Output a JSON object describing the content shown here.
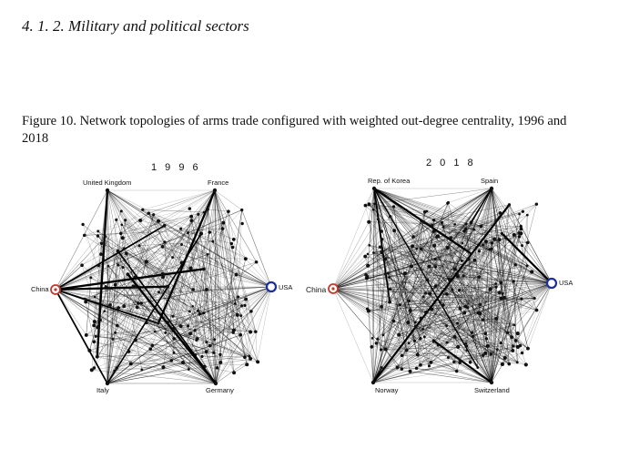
{
  "section_heading": "4. 1. 2. Military and political sectors",
  "figure_caption": "Figure 10. Network topologies of arms trade configured with weighted out-degree centrality, 1996 and 2018",
  "colors": {
    "usa_node": "#1a2f9c",
    "china_node": "#c0392b",
    "edges": "#000000"
  },
  "networks": [
    {
      "year_label": "1 9 9 6",
      "hubs": {
        "top_left": "United Kingdom",
        "top_right": "France",
        "right": "USA",
        "left": "China",
        "bottom_left": "Italy",
        "bottom_right": "Germany"
      }
    },
    {
      "year_label": "2 0 1 8",
      "hubs": {
        "top_left": "Rep. of Korea",
        "top_right": "Spain",
        "right": "USA",
        "left": "China",
        "bottom_left": "Norway",
        "bottom_right": "Switzerland"
      }
    }
  ]
}
